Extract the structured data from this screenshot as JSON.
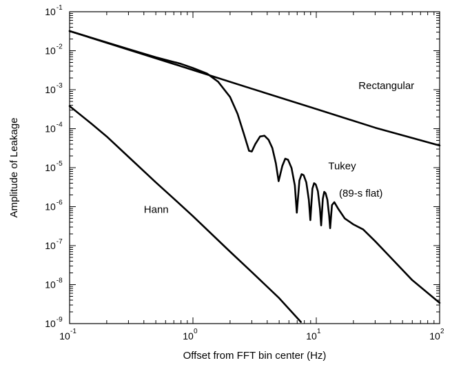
{
  "chart_data": {
    "type": "line",
    "xlabel": "Offset from FFT bin center (Hz)",
    "ylabel": "Amplitude of Leakage",
    "x_scale": "log",
    "y_scale": "log",
    "xlim": [
      0.1,
      100
    ],
    "ylim": [
      1e-09,
      0.1
    ],
    "grid": false,
    "x_ticks": [
      {
        "base": "10",
        "exp": "-1",
        "value": 0.1
      },
      {
        "base": "10",
        "exp": "0",
        "value": 1
      },
      {
        "base": "10",
        "exp": "1",
        "value": 10
      },
      {
        "base": "10",
        "exp": "2",
        "value": 100
      }
    ],
    "y_ticks": [
      {
        "base": "10",
        "exp": "-1",
        "value": 0.1
      },
      {
        "base": "10",
        "exp": "-2",
        "value": 0.01
      },
      {
        "base": "10",
        "exp": "-3",
        "value": 0.001
      },
      {
        "base": "10",
        "exp": "-4",
        "value": 0.0001
      },
      {
        "base": "10",
        "exp": "-5",
        "value": 1e-05
      },
      {
        "base": "10",
        "exp": "-6",
        "value": 1e-06
      },
      {
        "base": "10",
        "exp": "-7",
        "value": 1e-07
      },
      {
        "base": "10",
        "exp": "-8",
        "value": 1e-08
      },
      {
        "base": "10",
        "exp": "-9",
        "value": 1e-09
      }
    ],
    "series": [
      {
        "id": "rectangular",
        "x": [
          0.1,
          0.3,
          1,
          3,
          10,
          30,
          100
        ],
        "y": [
          0.032,
          0.0106,
          0.0032,
          0.00106,
          0.00032,
          0.000106,
          3.7e-05
        ]
      },
      {
        "id": "tukey",
        "x": [
          0.1,
          0.3,
          0.5,
          0.8,
          1.0,
          1.3,
          1.6,
          2.0,
          2.3,
          2.6,
          2.85,
          3.0,
          3.2,
          3.5,
          3.8,
          4.1,
          4.4,
          4.7,
          4.95,
          5.3,
          5.6,
          5.9,
          6.3,
          6.7,
          6.95,
          7.3,
          7.6,
          7.9,
          8.3,
          8.7,
          8.95,
          9.3,
          9.6,
          9.9,
          10.3,
          10.7,
          10.95,
          11.3,
          11.6,
          11.9,
          12.3,
          12.7,
          12.95,
          13.4,
          14,
          15,
          17,
          20,
          24,
          30,
          40,
          60,
          100
        ],
        "y": [
          0.032,
          0.011,
          0.0068,
          0.0046,
          0.0036,
          0.0026,
          0.0016,
          0.00065,
          0.00024,
          7e-05,
          2.7e-05,
          2.6e-05,
          4e-05,
          6.3e-05,
          6.6e-05,
          5.2e-05,
          3.2e-05,
          1.3e-05,
          4.5e-06,
          1.1e-05,
          1.7e-05,
          1.6e-05,
          9.8e-06,
          3.5e-06,
          7e-07,
          4.7e-06,
          6.8e-06,
          6.4e-06,
          4.2e-06,
          1.5e-06,
          4.5e-07,
          2.9e-06,
          4e-06,
          3.7e-06,
          2.5e-06,
          9e-07,
          3.3e-07,
          1.6e-06,
          2.4e-06,
          2.2e-06,
          1.5e-06,
          6e-07,
          2.8e-07,
          1.1e-06,
          1.3e-06,
          9e-07,
          5e-07,
          3.5e-07,
          2.6e-07,
          1.3e-07,
          5e-08,
          1.3e-08,
          3.4e-09
        ]
      },
      {
        "id": "hann",
        "x": [
          0.1,
          0.15,
          0.2,
          0.3,
          0.5,
          0.7,
          1,
          2,
          3,
          5,
          7.5
        ],
        "y": [
          0.00038,
          0.000135,
          6.3e-05,
          1.9e-05,
          4.2e-06,
          1.6e-06,
          5.7e-07,
          7e-08,
          2.1e-08,
          4.5e-09,
          1.1e-09
        ]
      }
    ],
    "annotations": [
      {
        "id": "rectangular",
        "text": "Rectangular",
        "x": 22,
        "y": 0.00105
      },
      {
        "id": "tukey",
        "text": "Tukey",
        "x": 12.5,
        "y": 9e-06
      },
      {
        "id": "tukey-note",
        "text": "(89-s flat)",
        "x": 15.3,
        "y": 1.8e-06
      },
      {
        "id": "hann",
        "text": "Hann",
        "x": 0.4,
        "y": 7e-07
      }
    ]
  }
}
